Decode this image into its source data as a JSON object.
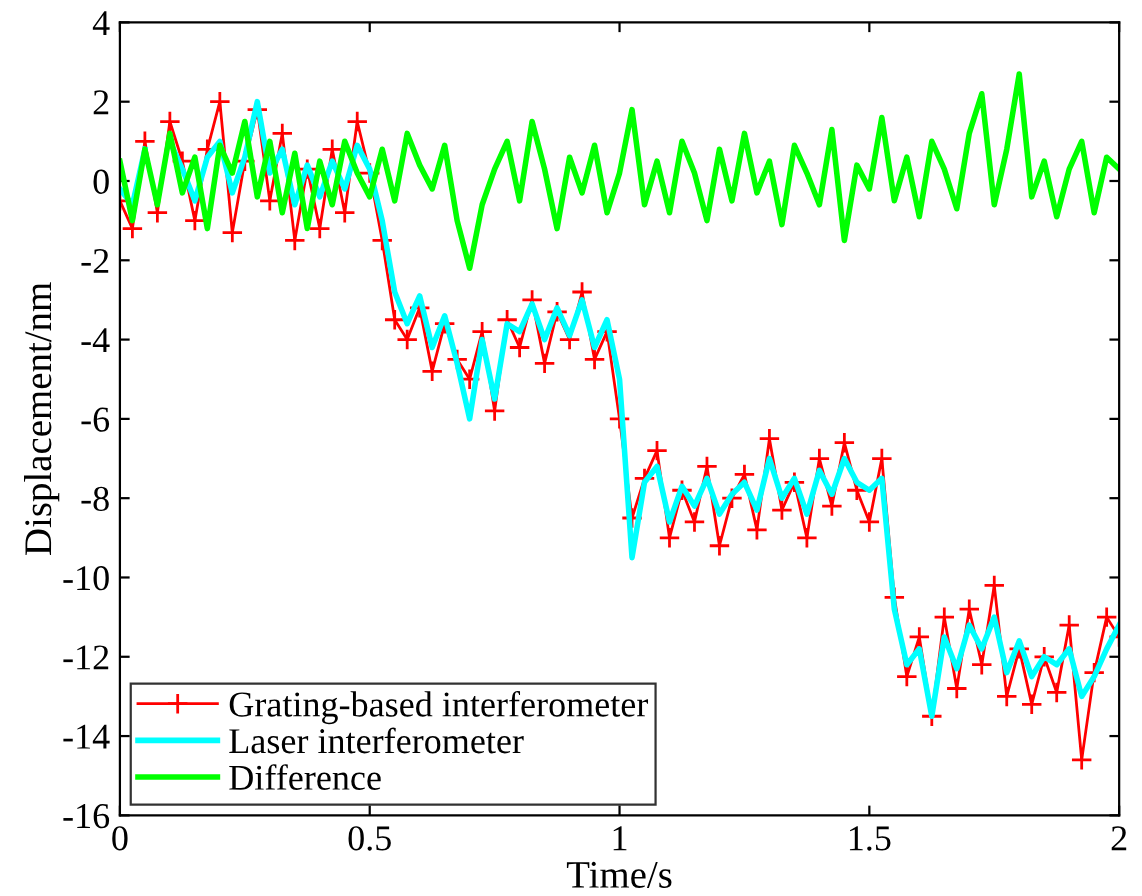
{
  "chart_data": {
    "type": "line",
    "xlabel": "Time/s",
    "ylabel": "Displacement/nm",
    "x": [
      0,
      0.025,
      0.05,
      0.075,
      0.1,
      0.125,
      0.15,
      0.175,
      0.2,
      0.225,
      0.25,
      0.275,
      0.3,
      0.325,
      0.35,
      0.375,
      0.4,
      0.425,
      0.45,
      0.475,
      0.5,
      0.525,
      0.55,
      0.575,
      0.6,
      0.625,
      0.65,
      0.675,
      0.7,
      0.725,
      0.75,
      0.775,
      0.8,
      0.825,
      0.85,
      0.875,
      0.9,
      0.925,
      0.95,
      0.975,
      1.0,
      1.025,
      1.05,
      1.075,
      1.1,
      1.125,
      1.15,
      1.175,
      1.2,
      1.225,
      1.25,
      1.275,
      1.3,
      1.325,
      1.35,
      1.375,
      1.4,
      1.425,
      1.45,
      1.475,
      1.5,
      1.525,
      1.55,
      1.575,
      1.6,
      1.625,
      1.65,
      1.675,
      1.7,
      1.725,
      1.75,
      1.775,
      1.8,
      1.825,
      1.85,
      1.875,
      1.9,
      1.925,
      1.95,
      1.975,
      2.0
    ],
    "series": [
      {
        "name": "Grating-based interferometer",
        "color": "#ff0000",
        "marker": "cross",
        "values": [
          -0.5,
          -1.2,
          1.0,
          -0.8,
          1.5,
          0.5,
          -1.0,
          0.8,
          2.0,
          -1.3,
          0.5,
          1.8,
          -0.5,
          1.2,
          -1.5,
          0.3,
          -1.2,
          0.8,
          -0.8,
          1.5,
          0.2,
          -1.5,
          -3.5,
          -4.0,
          -3.2,
          -4.8,
          -3.6,
          -4.5,
          -5.0,
          -3.8,
          -5.8,
          -3.5,
          -4.2,
          -3.0,
          -4.6,
          -3.3,
          -4.0,
          -2.8,
          -4.5,
          -3.8,
          -6.0,
          -8.5,
          -7.5,
          -6.8,
          -9.0,
          -7.8,
          -8.6,
          -7.2,
          -9.2,
          -8.0,
          -7.4,
          -8.8,
          -6.5,
          -8.3,
          -7.6,
          -9.0,
          -7.0,
          -8.2,
          -6.6,
          -7.8,
          -8.6,
          -7.0,
          -10.5,
          -12.5,
          -11.5,
          -13.5,
          -11.0,
          -12.8,
          -10.8,
          -12.2,
          -10.2,
          -13.0,
          -11.8,
          -13.2,
          -12.0,
          -12.9,
          -11.2,
          -14.6,
          -12.4,
          -11.0,
          -11.5
        ]
      },
      {
        "name": "Laser interferometer",
        "color": "#00ffff",
        "marker": "none",
        "values": [
          -0.2,
          -0.6,
          0.8,
          null,
          1.0,
          0.3,
          -0.5,
          0.6,
          1.0,
          -0.3,
          0.6,
          2.0,
          0.2,
          0.8,
          -0.6,
          0.4,
          -0.4,
          0.5,
          -0.2,
          0.9,
          0.3,
          -1.0,
          -2.8,
          -3.6,
          -2.9,
          -4.2,
          -3.4,
          -4.6,
          -6.0,
          -4.0,
          -5.5,
          -3.6,
          -3.8,
          -3.1,
          -4.0,
          -3.2,
          -3.9,
          -3.0,
          -4.2,
          -3.5,
          -5.0,
          -9.5,
          -7.6,
          -7.2,
          -8.6,
          -7.7,
          -8.2,
          -7.5,
          -8.4,
          -7.9,
          -7.6,
          -8.3,
          -7.0,
          -8.0,
          -7.5,
          -8.4,
          -7.3,
          -7.9,
          -7.0,
          -7.6,
          -7.8,
          -7.5,
          -10.8,
          -12.2,
          -11.8,
          -13.5,
          -11.5,
          -12.3,
          -11.2,
          -11.8,
          -11.0,
          -12.4,
          -11.6,
          -12.5,
          -12.0,
          -12.2,
          -11.8,
          -13.0,
          -12.5,
          -11.8,
          -11.2
        ]
      },
      {
        "name": "Difference",
        "color": "#00ff00",
        "marker": "none",
        "values": [
          0.5,
          -1.0,
          0.8,
          -0.6,
          1.2,
          -0.3,
          0.6,
          -1.2,
          0.9,
          0.2,
          1.5,
          -0.4,
          1.0,
          -0.8,
          0.7,
          -1.2,
          0.5,
          -0.6,
          1.0,
          0.2,
          -0.4,
          0.8,
          -0.5,
          1.2,
          0.4,
          -0.2,
          0.9,
          -1.0,
          -2.2,
          -0.6,
          0.3,
          1.0,
          -0.5,
          1.5,
          0.3,
          -1.2,
          0.6,
          -0.3,
          0.9,
          -0.8,
          0.2,
          1.8,
          -0.6,
          0.5,
          -0.8,
          1.0,
          0.2,
          -1.0,
          0.8,
          -0.5,
          1.2,
          -0.3,
          0.5,
          -1.1,
          0.9,
          0.2,
          -0.6,
          1.3,
          -1.5,
          0.4,
          -0.2,
          1.6,
          -0.5,
          0.6,
          -0.9,
          1.0,
          0.3,
          -0.7,
          1.2,
          2.2,
          -0.6,
          0.8,
          2.7,
          -0.4,
          0.5,
          -0.9,
          0.3,
          1.0,
          -0.8,
          0.6,
          0.3
        ]
      }
    ],
    "xlim": [
      0,
      2
    ],
    "xticks": [
      0,
      0.5,
      1,
      1.5,
      2
    ],
    "ylim": [
      -16,
      4
    ],
    "yticks": [
      -16,
      -14,
      -12,
      -10,
      -8,
      -6,
      -4,
      -2,
      0,
      2,
      4
    ],
    "grid": false,
    "legend": "bottom left",
    "line_style": "solid"
  }
}
